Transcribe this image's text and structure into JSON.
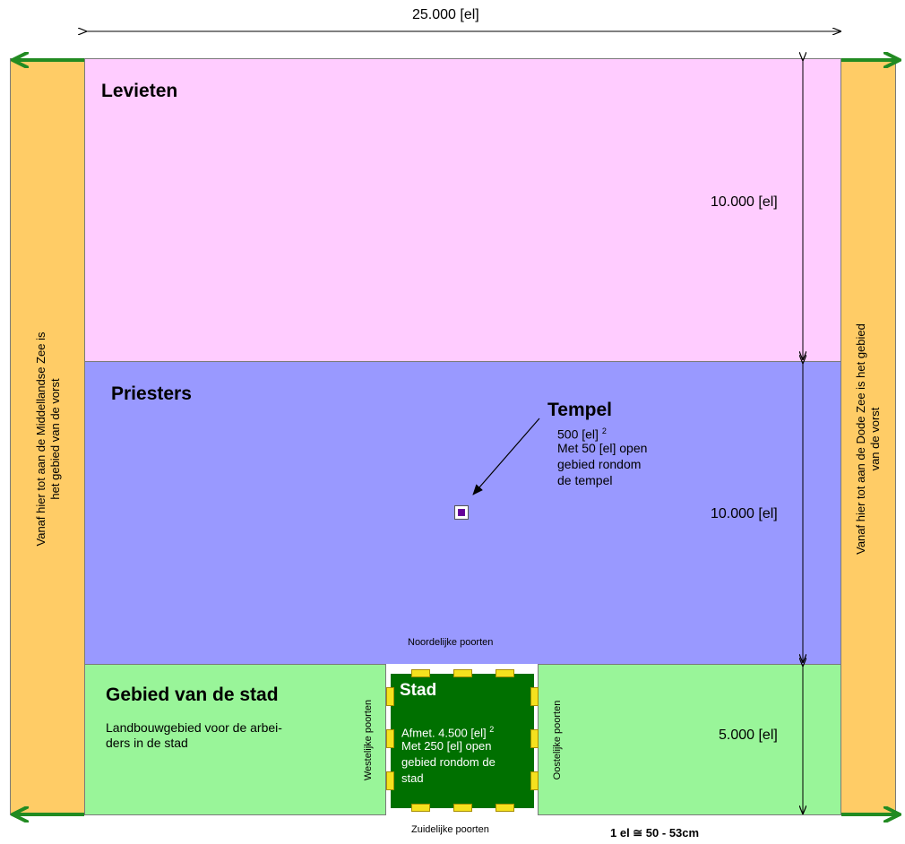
{
  "top_dimension": "25.000 [el]",
  "zones": {
    "levieten": {
      "title": "Levieten",
      "height_label": "10.000 [el]",
      "color": "#ffccff"
    },
    "priesters": {
      "title": "Priesters",
      "height_label": "10.000 [el]",
      "color": "#9999ff"
    },
    "stad_gebied": {
      "title": "Gebied van de stad",
      "description_line1": "Landbouwgebied voor de arbei-",
      "description_line2": "ders in de stad",
      "height_label": "5.000 [el]",
      "color": "#99f599"
    }
  },
  "side_strips": {
    "left_line1": "Vanaf hier tot aan de Middellandse Zee is",
    "left_line2": "het gebied van de vorst",
    "right_line1": "Vanaf hier tot aan de Dode Zee is het gebied",
    "right_line2": "van de vorst",
    "color": "#ffcc66"
  },
  "tempel": {
    "title": "Tempel",
    "size_text": "500 [el]",
    "size_sup": "2",
    "line2": "Met 50 [el] open",
    "line3": "gebied rondom",
    "line4": "de tempel",
    "color": "#660099"
  },
  "stad": {
    "title": "Stad",
    "size_text": "Afmet. 4.500 [el]",
    "size_sup": "2",
    "line2": "Met 250 [el] open",
    "line3": "gebied rondom de",
    "line4": "stad",
    "color": "#007000",
    "gate_color": "#f5e11e"
  },
  "gates": {
    "north": "Noordelijke poorten",
    "south": "Zuidelijke poorten",
    "west": "Westelijke poorten",
    "east": "Oostelijke poorten"
  },
  "scale_note": "1 el ≅ 50 - 53cm",
  "arrow_color": "#228b22"
}
